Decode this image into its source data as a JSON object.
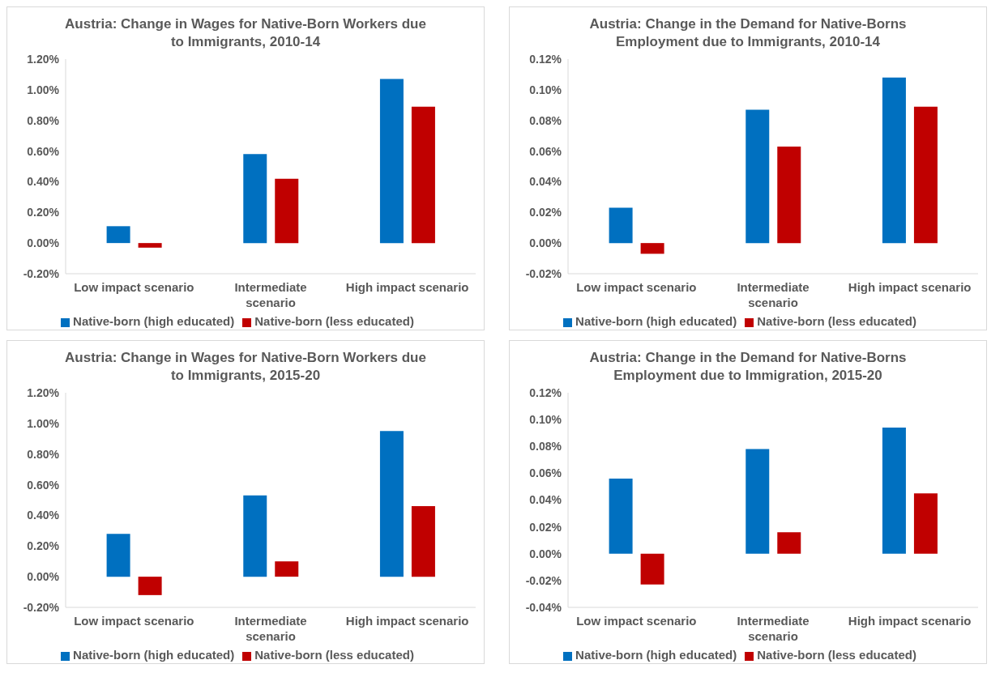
{
  "chart_data": [
    {
      "type": "bar",
      "title": "Austria: Change in Wages for Native-Born Workers due to Immigrants, 2010-14",
      "categories": [
        "Low impact scenario",
        "Intermediate scenario",
        "High impact scenario"
      ],
      "series": [
        {
          "name": "Native-born (high educated)",
          "color": "#0070c0",
          "values": [
            0.11,
            0.58,
            1.07
          ]
        },
        {
          "name": "Native-born (less educated)",
          "color": "#c00000",
          "values": [
            -0.03,
            0.42,
            0.89
          ]
        }
      ],
      "ylim": [
        -0.2,
        1.2
      ],
      "yticks": [
        {
          "value": -0.2,
          "label": "-0.20%"
        },
        {
          "value": 0,
          "label": "0.00%"
        },
        {
          "value": 0.2,
          "label": "0.20%"
        },
        {
          "value": 0.4,
          "label": "0.40%"
        },
        {
          "value": 0.6,
          "label": "0.60%"
        },
        {
          "value": 0.8,
          "label": "0.80%"
        },
        {
          "value": 1,
          "label": "1.00%"
        },
        {
          "value": 1.2,
          "label": "1.20%"
        }
      ],
      "grid": false,
      "legend": "bottom"
    },
    {
      "type": "bar",
      "title": "Austria: Change in the Demand for Native-Borns Employment due to Immigrants, 2010-14",
      "categories": [
        "Low impact scenario",
        "Intermediate scenario",
        "High impact scenario"
      ],
      "series": [
        {
          "name": "Native-born (high educated)",
          "color": "#0070c0",
          "values": [
            0.023,
            0.087,
            0.108
          ]
        },
        {
          "name": "Native-born (less educated)",
          "color": "#c00000",
          "values": [
            -0.007,
            0.063,
            0.089
          ]
        }
      ],
      "ylim": [
        -0.02,
        0.12
      ],
      "yticks": [
        {
          "value": -0.02,
          "label": "-0.02%"
        },
        {
          "value": 0,
          "label": "0.00%"
        },
        {
          "value": 0.02,
          "label": "0.02%"
        },
        {
          "value": 0.04,
          "label": "0.04%"
        },
        {
          "value": 0.06,
          "label": "0.06%"
        },
        {
          "value": 0.08,
          "label": "0.08%"
        },
        {
          "value": 0.1,
          "label": "0.10%"
        },
        {
          "value": 0.12,
          "label": "0.12%"
        }
      ],
      "grid": false,
      "legend": "bottom"
    },
    {
      "type": "bar",
      "title": "Austria: Change in Wages for Native-Born Workers due to Immigrants, 2015-20",
      "categories": [
        "Low impact scenario",
        "Intermediate scenario",
        "High impact scenario"
      ],
      "series": [
        {
          "name": "Native-born (high educated)",
          "color": "#0070c0",
          "values": [
            0.28,
            0.53,
            0.95
          ]
        },
        {
          "name": "Native-born (less educated)",
          "color": "#c00000",
          "values": [
            -0.12,
            0.1,
            0.46
          ]
        }
      ],
      "ylim": [
        -0.2,
        1.2
      ],
      "yticks": [
        {
          "value": -0.2,
          "label": "-0.20%"
        },
        {
          "value": 0,
          "label": "0.00%"
        },
        {
          "value": 0.2,
          "label": "0.20%"
        },
        {
          "value": 0.4,
          "label": "0.40%"
        },
        {
          "value": 0.6,
          "label": "0.60%"
        },
        {
          "value": 0.8,
          "label": "0.80%"
        },
        {
          "value": 1,
          "label": "1.00%"
        },
        {
          "value": 1.2,
          "label": "1.20%"
        }
      ],
      "grid": false,
      "legend": "bottom"
    },
    {
      "type": "bar",
      "title": "Austria: Change in the Demand for Native-Borns Employment due to Immigration, 2015-20",
      "categories": [
        "Low impact scenario",
        "Intermediate scenario",
        "High impact scenario"
      ],
      "series": [
        {
          "name": "Native-born (high educated)",
          "color": "#0070c0",
          "values": [
            0.056,
            0.078,
            0.094
          ]
        },
        {
          "name": "Native-born (less educated)",
          "color": "#c00000",
          "values": [
            -0.023,
            0.016,
            0.045
          ]
        }
      ],
      "ylim": [
        -0.04,
        0.12
      ],
      "yticks": [
        {
          "value": -0.04,
          "label": "-0.04%"
        },
        {
          "value": -0.02,
          "label": "-0.02%"
        },
        {
          "value": 0,
          "label": "0.00%"
        },
        {
          "value": 0.02,
          "label": "0.02%"
        },
        {
          "value": 0.04,
          "label": "0.04%"
        },
        {
          "value": 0.06,
          "label": "0.06%"
        },
        {
          "value": 0.08,
          "label": "0.08%"
        },
        {
          "value": 0.1,
          "label": "0.10%"
        },
        {
          "value": 0.12,
          "label": "0.12%"
        }
      ],
      "grid": false,
      "legend": "bottom"
    }
  ]
}
